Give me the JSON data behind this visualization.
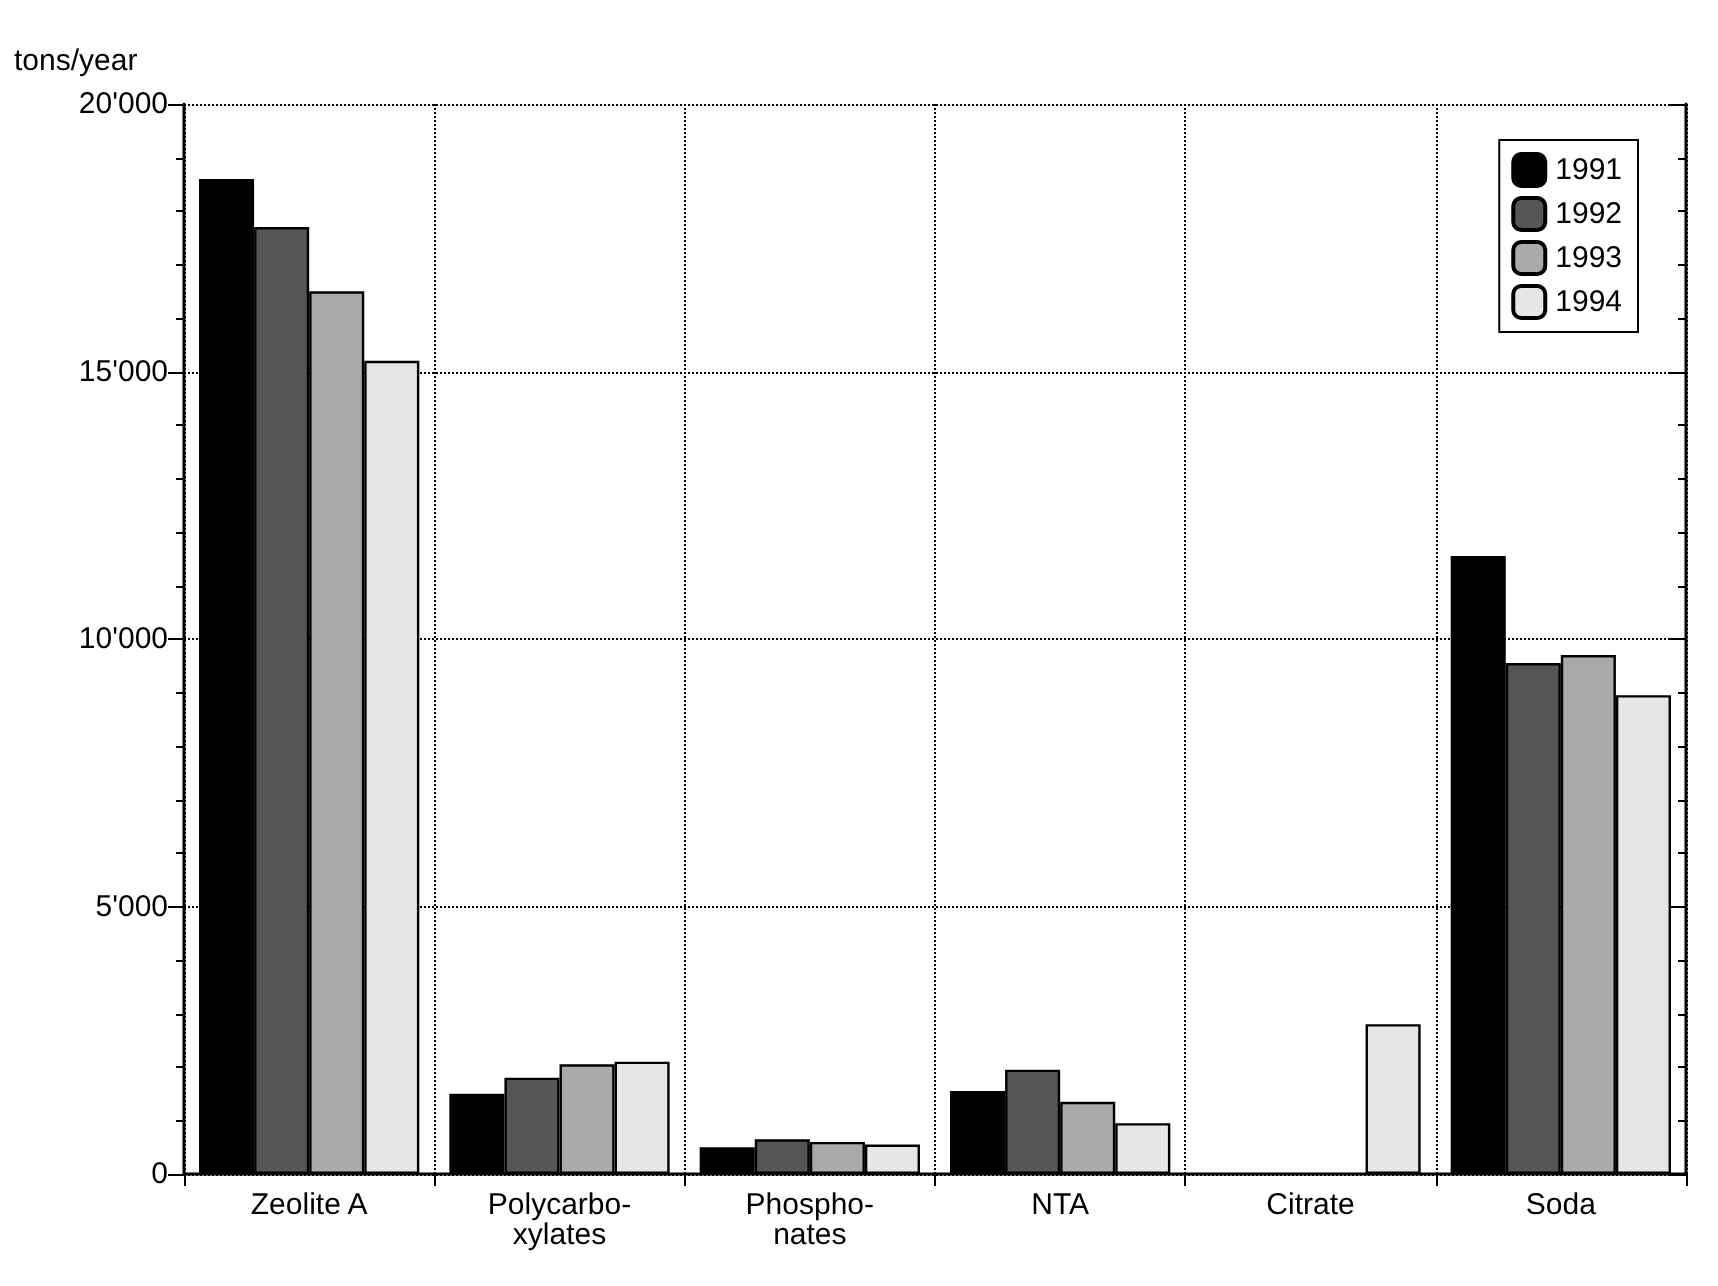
{
  "chart_data": {
    "type": "bar",
    "ylabel": "tons/year",
    "categories": [
      "Zeolite A",
      "Polycarbo-\nxylates",
      "Phospho-\nnates",
      "NTA",
      "Citrate",
      "Soda"
    ],
    "series": [
      {
        "name": "1991",
        "color": "#000000",
        "values": [
          18600,
          1500,
          500,
          1550,
          null,
          11550
        ]
      },
      {
        "name": "1992",
        "color": "#555555",
        "values": [
          17700,
          1800,
          650,
          1950,
          null,
          9550
        ]
      },
      {
        "name": "1993",
        "color": "#aaaaaa",
        "values": [
          16500,
          2050,
          600,
          1350,
          null,
          9700
        ]
      },
      {
        "name": "1994",
        "color": "#e6e6e6",
        "values": [
          15200,
          2100,
          550,
          950,
          2800,
          8950
        ]
      }
    ],
    "ylim": [
      0,
      20000
    ],
    "yticks": [
      {
        "value": 0,
        "label": "0"
      },
      {
        "value": 5000,
        "label": "5'000"
      },
      {
        "value": 10000,
        "label": "10'000"
      },
      {
        "value": 15000,
        "label": "15'000"
      },
      {
        "value": 20000,
        "label": "20'000"
      }
    ],
    "grid": true,
    "legend": "top right"
  }
}
